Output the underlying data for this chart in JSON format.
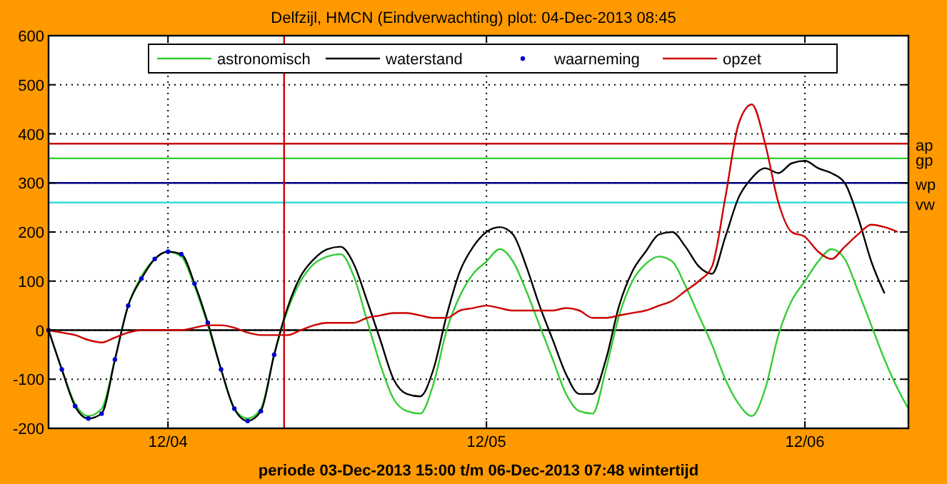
{
  "chart_data": {
    "type": "line",
    "title": "Delfzijl, HMCN (Eindverwachting) plot: 04-Dec-2013 08:45",
    "xlabel": "periode 03-Dec-2013 15:00 t/m 06-Dec-2013 07:48 wintertijd",
    "x": [
      "2013-12-03T15:00",
      "2013-12-03T16:00",
      "2013-12-03T17:00",
      "2013-12-03T18:00",
      "2013-12-03T19:00",
      "2013-12-03T20:00",
      "2013-12-03T21:00",
      "2013-12-03T22:00",
      "2013-12-03T23:00",
      "2013-12-04T00:00",
      "2013-12-04T01:00",
      "2013-12-04T02:00",
      "2013-12-04T03:00",
      "2013-12-04T04:00",
      "2013-12-04T05:00",
      "2013-12-04T06:00",
      "2013-12-04T07:00",
      "2013-12-04T08:00",
      "2013-12-04T09:00",
      "2013-12-04T10:00",
      "2013-12-04T11:00",
      "2013-12-04T12:00",
      "2013-12-04T13:00",
      "2013-12-04T14:00",
      "2013-12-04T15:00",
      "2013-12-04T16:00",
      "2013-12-04T17:00",
      "2013-12-04T18:00",
      "2013-12-04T19:00",
      "2013-12-04T20:00",
      "2013-12-04T21:00",
      "2013-12-04T22:00",
      "2013-12-04T23:00",
      "2013-12-05T00:00",
      "2013-12-05T01:00",
      "2013-12-05T02:00",
      "2013-12-05T03:00",
      "2013-12-05T04:00",
      "2013-12-05T05:00",
      "2013-12-05T06:00",
      "2013-12-05T07:00",
      "2013-12-05T08:00",
      "2013-12-05T09:00",
      "2013-12-05T10:00",
      "2013-12-05T11:00",
      "2013-12-05T12:00",
      "2013-12-05T13:00",
      "2013-12-05T14:00",
      "2013-12-05T15:00",
      "2013-12-05T16:00",
      "2013-12-05T17:00",
      "2013-12-05T18:00",
      "2013-12-05T19:00",
      "2013-12-05T20:00",
      "2013-12-05T21:00",
      "2013-12-05T22:00",
      "2013-12-05T23:00",
      "2013-12-06T00:00",
      "2013-12-06T01:00",
      "2013-12-06T02:00",
      "2013-12-06T03:00",
      "2013-12-06T04:00",
      "2013-12-06T05:00",
      "2013-12-06T06:00",
      "2013-12-06T07:00",
      "2013-12-06T07:48"
    ],
    "series": [
      {
        "name": "astronomisch",
        "color": "#33cc33",
        "values": [
          0,
          -80,
          -150,
          -175,
          -160,
          -60,
          50,
          110,
          145,
          160,
          150,
          90,
          10,
          -80,
          -160,
          -180,
          -160,
          -50,
          40,
          100,
          135,
          150,
          155,
          110,
          20,
          -70,
          -140,
          -165,
          -170,
          -110,
          0,
          70,
          115,
          140,
          165,
          140,
          80,
          10,
          -60,
          -130,
          -165,
          -170,
          -80,
          30,
          100,
          135,
          150,
          140,
          90,
          30,
          -30,
          -100,
          -150,
          -175,
          -120,
          -10,
          60,
          100,
          140,
          165,
          145,
          80,
          10,
          -60,
          -120,
          -160
        ]
      },
      {
        "name": "waterstand",
        "color": "#000000",
        "values": [
          0,
          -80,
          -155,
          -180,
          -170,
          -60,
          50,
          105,
          145,
          160,
          155,
          95,
          15,
          -80,
          -160,
          -185,
          -165,
          -50,
          45,
          110,
          145,
          165,
          170,
          135,
          60,
          -20,
          -100,
          -130,
          -135,
          -80,
          30,
          120,
          170,
          200,
          210,
          195,
          130,
          50,
          -20,
          -90,
          -130,
          -130,
          -60,
          50,
          120,
          160,
          195,
          200,
          170,
          130,
          115,
          190,
          270,
          310,
          330,
          320,
          340,
          345,
          330,
          320,
          300,
          230,
          140,
          75,
          null,
          null
        ]
      },
      {
        "name": "waarneming",
        "type": "scatter",
        "marker": "circle",
        "color": "#0000cc",
        "values": [
          0,
          -80,
          -155,
          -180,
          -170,
          -60,
          50,
          105,
          145,
          160,
          155,
          95,
          15,
          -80,
          -160,
          -185,
          -165,
          -50,
          null,
          null,
          null,
          null,
          null,
          null,
          null,
          null,
          null,
          null,
          null,
          null,
          null,
          null,
          null,
          null,
          null,
          null,
          null,
          null,
          null,
          null,
          null,
          null,
          null,
          null,
          null,
          null,
          null,
          null,
          null,
          null,
          null,
          null,
          null,
          null,
          null,
          null,
          null,
          null,
          null,
          null,
          null,
          null,
          null,
          null,
          null,
          null
        ]
      },
      {
        "name": "opzet",
        "color": "#cc0000",
        "values": [
          0,
          -5,
          -10,
          -20,
          -25,
          -15,
          -5,
          0,
          0,
          0,
          0,
          5,
          10,
          10,
          5,
          -5,
          -10,
          -10,
          -10,
          0,
          10,
          15,
          15,
          15,
          25,
          30,
          35,
          35,
          30,
          25,
          25,
          40,
          45,
          50,
          45,
          40,
          40,
          40,
          40,
          45,
          40,
          25,
          25,
          30,
          35,
          40,
          50,
          60,
          80,
          100,
          130,
          270,
          420,
          460,
          380,
          260,
          200,
          190,
          160,
          145,
          170,
          195,
          215,
          210,
          200,
          null
        ]
      }
    ],
    "xlim": [
      "2013-12-03T15:00",
      "2013-12-06T07:48"
    ],
    "xticks": [
      {
        "value": "2013-12-04",
        "label": "12/04"
      },
      {
        "value": "2013-12-05",
        "label": "12/05"
      },
      {
        "value": "2013-12-06",
        "label": "12/06"
      }
    ],
    "ylim": [
      -200,
      600
    ],
    "yticks": [
      -200,
      -100,
      0,
      100,
      200,
      300,
      400,
      500,
      600
    ],
    "grid": true,
    "legend": "top",
    "ref_lines": [
      {
        "axis": "y",
        "value": 380,
        "label": "ap",
        "color": "#cc0000"
      },
      {
        "axis": "y",
        "value": 350,
        "label": "gp",
        "color": "#33cc33"
      },
      {
        "axis": "y",
        "value": 300,
        "label": "wp",
        "color": "#000080"
      },
      {
        "axis": "y",
        "value": 260,
        "label": "vw",
        "color": "#33dddd"
      },
      {
        "axis": "y",
        "value": 0,
        "color": "#000000"
      },
      {
        "axis": "x",
        "value": "2013-12-04T08:45",
        "color": "#cc0000"
      }
    ]
  }
}
